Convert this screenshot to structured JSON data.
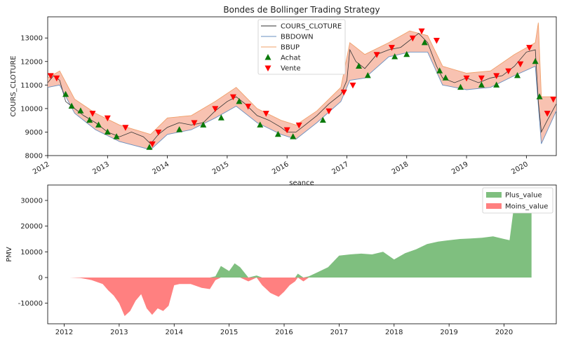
{
  "chart_data": [
    {
      "type": "line",
      "title": "Bondes de Bollinger Trading Strategy",
      "xlabel": "seance",
      "ylabel": "COURS_CLOTURE",
      "xlim": [
        2012.0,
        2020.5
      ],
      "ylim": [
        8000,
        13900
      ],
      "x_ticks": [
        "2012",
        "2013",
        "2014",
        "2015",
        "2016",
        "2017",
        "2018",
        "2019",
        "2020"
      ],
      "y_ticks": [
        8000,
        9000,
        10000,
        11000,
        12000,
        13000
      ],
      "legend_position": "top-center",
      "colors": {
        "cours": "#333333",
        "bbdown": "#6a8fc0",
        "bbup": "#f0a06a",
        "band_fill": "#f7b7a3",
        "achat": "#0a7a0a",
        "vente": "#ff0000"
      },
      "series": [
        {
          "name": "COURS_CLOTURE",
          "x": [
            2012.0,
            2012.1,
            2012.2,
            2012.3,
            2012.45,
            2012.6,
            2012.8,
            2013.0,
            2013.2,
            2013.4,
            2013.6,
            2013.72,
            2013.85,
            2014.0,
            2014.2,
            2014.4,
            2014.6,
            2014.8,
            2015.0,
            2015.15,
            2015.3,
            2015.5,
            2015.7,
            2015.9,
            2016.0,
            2016.15,
            2016.3,
            2016.5,
            2016.7,
            2016.9,
            2017.0,
            2017.05,
            2017.15,
            2017.3,
            2017.5,
            2017.7,
            2017.9,
            2018.05,
            2018.2,
            2018.35,
            2018.5,
            2018.6,
            2018.8,
            2019.0,
            2019.2,
            2019.4,
            2019.6,
            2019.8,
            2020.0,
            2020.15,
            2020.2,
            2020.25,
            2020.35,
            2020.5
          ],
          "values": [
            11100,
            11400,
            11200,
            10300,
            10000,
            9700,
            9400,
            9000,
            8800,
            9000,
            8800,
            8500,
            8900,
            9200,
            9400,
            9300,
            9400,
            9900,
            10300,
            10500,
            10200,
            9700,
            9500,
            9200,
            9000,
            9000,
            9300,
            9700,
            10200,
            10600,
            11200,
            12500,
            12000,
            11700,
            12300,
            12500,
            12600,
            12900,
            13200,
            12800,
            11800,
            11300,
            11100,
            11300,
            11100,
            11300,
            11400,
            11800,
            12400,
            12500,
            10300,
            9000,
            9500,
            10200
          ]
        },
        {
          "name": "BBDOWN",
          "x": [
            2012.0,
            2012.2,
            2012.45,
            2012.8,
            2013.2,
            2013.72,
            2014.0,
            2014.4,
            2014.8,
            2015.15,
            2015.5,
            2015.9,
            2016.15,
            2016.5,
            2016.9,
            2017.05,
            2017.3,
            2017.7,
            2018.05,
            2018.35,
            2018.6,
            2019.0,
            2019.4,
            2019.8,
            2020.15,
            2020.25,
            2020.5
          ],
          "values": [
            10900,
            11000,
            9800,
            9100,
            8600,
            8250,
            8900,
            9100,
            9600,
            10100,
            9400,
            8900,
            8700,
            9400,
            10300,
            11200,
            11300,
            12200,
            12400,
            12400,
            11000,
            10800,
            10900,
            11400,
            11800,
            8500,
            9900
          ]
        },
        {
          "name": "BBUP",
          "x": [
            2012.0,
            2012.2,
            2012.45,
            2012.8,
            2013.2,
            2013.72,
            2014.0,
            2014.4,
            2014.8,
            2015.15,
            2015.5,
            2015.9,
            2016.15,
            2016.5,
            2016.9,
            2017.05,
            2017.3,
            2017.7,
            2018.05,
            2018.35,
            2018.6,
            2019.0,
            2019.4,
            2019.8,
            2020.15,
            2020.2,
            2020.25,
            2020.5
          ],
          "values": [
            11300,
            11600,
            10400,
            9800,
            9300,
            8900,
            9600,
            9700,
            10300,
            10900,
            10000,
            9500,
            9300,
            9900,
            10900,
            12800,
            12300,
            12800,
            13300,
            13100,
            11800,
            11500,
            11600,
            12300,
            12800,
            13650,
            10500,
            10500
          ]
        },
        {
          "name": "Achat",
          "x": [
            2012.3,
            2012.4,
            2012.55,
            2012.7,
            2012.85,
            2013.0,
            2013.15,
            2013.7,
            2014.2,
            2014.6,
            2014.9,
            2015.2,
            2015.55,
            2015.85,
            2016.1,
            2016.6,
            2017.2,
            2017.35,
            2017.8,
            2018.0,
            2018.3,
            2018.55,
            2018.65,
            2018.9,
            2019.25,
            2019.5,
            2019.85,
            2020.15,
            2020.22
          ],
          "values": [
            10600,
            10100,
            9900,
            9500,
            9300,
            9000,
            8800,
            8350,
            9100,
            9300,
            9600,
            10300,
            9300,
            8900,
            8800,
            9500,
            11800,
            11400,
            12200,
            12300,
            12800,
            11600,
            11300,
            10900,
            11000,
            11000,
            11400,
            12000,
            10500
          ]
        },
        {
          "name": "Vente",
          "x": [
            2012.05,
            2012.15,
            2012.75,
            2013.0,
            2013.3,
            2013.75,
            2013.85,
            2014.45,
            2014.8,
            2015.1,
            2015.35,
            2015.65,
            2016.0,
            2016.2,
            2016.7,
            2016.95,
            2017.1,
            2017.5,
            2017.75,
            2018.1,
            2018.25,
            2018.5,
            2019.0,
            2019.25,
            2019.5,
            2019.7,
            2019.9,
            2020.05,
            2020.35,
            2020.45
          ],
          "values": [
            11400,
            11300,
            9800,
            9600,
            9200,
            8500,
            9000,
            9400,
            10000,
            10500,
            10100,
            9800,
            9100,
            9300,
            9900,
            10700,
            11000,
            12300,
            12600,
            13000,
            13300,
            12900,
            11300,
            11300,
            11400,
            11600,
            11900,
            12600,
            9800,
            10400
          ]
        }
      ],
      "legend": [
        "COURS_CLOTURE",
        "BBDOWN",
        "BBUP",
        "Achat",
        "Vente"
      ]
    },
    {
      "type": "area",
      "ylabel": "PMV",
      "xlim": [
        2011.7,
        2020.95
      ],
      "ylim": [
        -18000,
        36000
      ],
      "x_ticks": [
        "2012",
        "2013",
        "2014",
        "2015",
        "2016",
        "2017",
        "2018",
        "2019",
        "2020"
      ],
      "y_ticks": [
        -10000,
        0,
        10000,
        20000,
        30000
      ],
      "legend_position": "top-right",
      "colors": {
        "plus": "#7fbf7f",
        "moins": "#ff8080"
      },
      "x": [
        2012.1,
        2012.3,
        2012.5,
        2012.7,
        2012.8,
        2012.9,
        2013.0,
        2013.1,
        2013.2,
        2013.3,
        2013.4,
        2013.5,
        2013.6,
        2013.7,
        2013.8,
        2013.9,
        2014.0,
        2014.1,
        2014.3,
        2014.5,
        2014.65,
        2014.75,
        2014.85,
        2015.0,
        2015.1,
        2015.2,
        2015.35,
        2015.5,
        2015.6,
        2015.75,
        2015.9,
        2016.0,
        2016.1,
        2016.2,
        2016.25,
        2016.35,
        2016.45,
        2016.6,
        2016.8,
        2017.0,
        2017.2,
        2017.4,
        2017.6,
        2017.8,
        2018.0,
        2018.2,
        2018.4,
        2018.6,
        2018.8,
        2019.0,
        2019.2,
        2019.4,
        2019.6,
        2019.8,
        2020.0,
        2020.1,
        2020.2,
        2020.3,
        2020.45,
        2020.5
      ],
      "series": [
        {
          "name": "Plus_value",
          "values": [
            0,
            0,
            0,
            0,
            0,
            0,
            0,
            0,
            0,
            0,
            0,
            0,
            0,
            0,
            0,
            0,
            0,
            0,
            0,
            0,
            0,
            500,
            4500,
            2500,
            5500,
            4000,
            0,
            800,
            0,
            0,
            0,
            0,
            0,
            0,
            1500,
            0,
            500,
            2000,
            4000,
            8500,
            9000,
            9300,
            9000,
            10000,
            7000,
            9500,
            11000,
            13000,
            14000,
            14500,
            15000,
            15200,
            15500,
            16000,
            15000,
            14500,
            31000,
            30000,
            30500,
            30000
          ]
        },
        {
          "name": "Moins_value",
          "values": [
            0,
            -200,
            -1000,
            -2500,
            -5000,
            -7000,
            -10000,
            -15000,
            -13000,
            -9000,
            -6500,
            -12000,
            -14500,
            -12000,
            -13000,
            -11000,
            -3000,
            -2500,
            -2500,
            -4000,
            -4500,
            -1000,
            0,
            0,
            0,
            0,
            -1500,
            0,
            -3000,
            -6000,
            -7500,
            -5500,
            -3000,
            -1500,
            0,
            -1500,
            0,
            0,
            0,
            0,
            0,
            0,
            0,
            0,
            0,
            0,
            0,
            0,
            0,
            0,
            0,
            0,
            0,
            0,
            0,
            0,
            0,
            0,
            0,
            0
          ]
        }
      ],
      "legend": [
        "Plus_value",
        "Moins_value"
      ]
    }
  ]
}
